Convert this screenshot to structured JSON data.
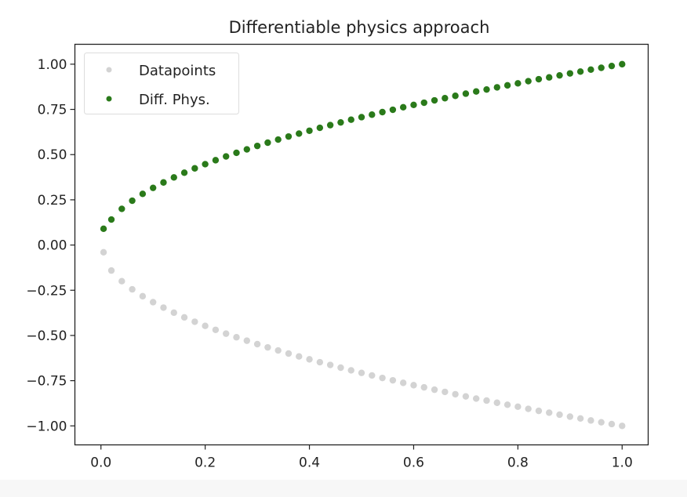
{
  "chart_data": {
    "type": "scatter",
    "title": "Differentiable physics approach",
    "xlabel": "",
    "ylabel": "",
    "xlim": [
      -0.05,
      1.05
    ],
    "ylim": [
      -1.105,
      1.11
    ],
    "xticks": [
      0.0,
      0.2,
      0.4,
      0.6,
      0.8,
      1.0
    ],
    "xtick_labels": [
      "0.0",
      "0.2",
      "0.4",
      "0.6",
      "0.8",
      "1.0"
    ],
    "yticks": [
      1.0,
      0.75,
      0.5,
      0.25,
      0.0,
      -0.25,
      -0.5,
      -0.75,
      -1.0
    ],
    "ytick_labels": [
      "1.00",
      "0.75",
      "0.50",
      "0.25",
      "0.00",
      "−0.25",
      "−0.50",
      "−0.75",
      "−1.00"
    ],
    "grid": false,
    "legend_placement": "top-left",
    "x": [
      0.005,
      0.02,
      0.04,
      0.06,
      0.08,
      0.1,
      0.12,
      0.14,
      0.16,
      0.18,
      0.2,
      0.22,
      0.24,
      0.26,
      0.28,
      0.3,
      0.32,
      0.34,
      0.36,
      0.38,
      0.4,
      0.42,
      0.44,
      0.46,
      0.48,
      0.5,
      0.52,
      0.54,
      0.56,
      0.58,
      0.6,
      0.62,
      0.64,
      0.66,
      0.68,
      0.7,
      0.72,
      0.74,
      0.76,
      0.78,
      0.8,
      0.82,
      0.84,
      0.86,
      0.88,
      0.9,
      0.92,
      0.94,
      0.96,
      0.98,
      1.0
    ],
    "series": [
      {
        "name": "Datapoints",
        "color": "#d3d3d3",
        "values": [
          -0.04,
          -0.141,
          -0.2,
          -0.245,
          -0.283,
          -0.316,
          -0.346,
          -0.374,
          -0.4,
          -0.424,
          -0.447,
          -0.469,
          -0.49,
          -0.51,
          -0.529,
          -0.548,
          -0.566,
          -0.583,
          -0.6,
          -0.616,
          -0.632,
          -0.648,
          -0.663,
          -0.678,
          -0.693,
          -0.707,
          -0.721,
          -0.735,
          -0.748,
          -0.762,
          -0.775,
          -0.787,
          -0.8,
          -0.812,
          -0.825,
          -0.837,
          -0.849,
          -0.86,
          -0.872,
          -0.883,
          -0.894,
          -0.906,
          -0.917,
          -0.927,
          -0.938,
          -0.949,
          -0.959,
          -0.97,
          -0.98,
          -0.99,
          -1.0
        ]
      },
      {
        "name": "Diff. Phys.",
        "color": "#2a7a1a",
        "values": [
          0.09,
          0.141,
          0.2,
          0.245,
          0.283,
          0.316,
          0.346,
          0.374,
          0.4,
          0.424,
          0.447,
          0.469,
          0.49,
          0.51,
          0.529,
          0.548,
          0.566,
          0.583,
          0.6,
          0.616,
          0.632,
          0.648,
          0.663,
          0.678,
          0.693,
          0.707,
          0.721,
          0.735,
          0.748,
          0.762,
          0.775,
          0.787,
          0.8,
          0.812,
          0.825,
          0.837,
          0.849,
          0.86,
          0.872,
          0.883,
          0.894,
          0.906,
          0.917,
          0.927,
          0.938,
          0.949,
          0.959,
          0.97,
          0.98,
          0.99,
          1.0
        ]
      }
    ]
  }
}
